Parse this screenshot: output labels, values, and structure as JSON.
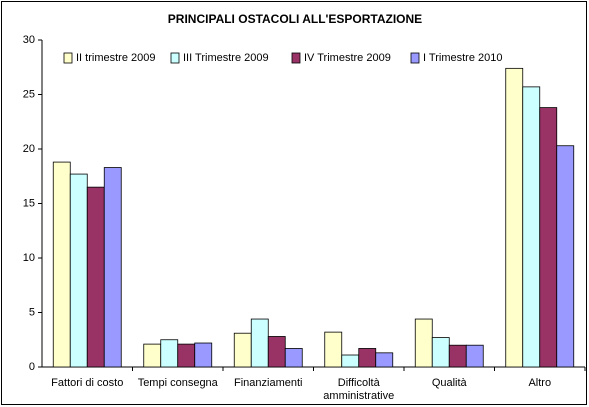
{
  "chart_data": {
    "type": "bar",
    "title": "PRINCIPALI OSTACOLI ALL'ESPORTAZIONE",
    "categories": [
      "Fattori di costo",
      "Tempi consegna",
      "Finanziamenti",
      "Difficoltà\namministrative",
      "Qualità",
      "Altro"
    ],
    "series": [
      {
        "name": "II trimestre 2009",
        "color": "#ffffcc",
        "values": [
          18.8,
          2.1,
          3.1,
          3.2,
          4.4,
          27.4
        ]
      },
      {
        "name": "III Trimestre 2009",
        "color": "#ccffff",
        "values": [
          17.7,
          2.5,
          4.4,
          1.1,
          2.7,
          25.7
        ]
      },
      {
        "name": "IV Trimestre 2009",
        "color": "#993366",
        "values": [
          16.5,
          2.1,
          2.8,
          1.7,
          2.0,
          23.8
        ]
      },
      {
        "name": "I Trimestre 2010",
        "color": "#9999ff",
        "values": [
          18.3,
          2.2,
          1.7,
          1.3,
          2.0,
          20.3
        ]
      }
    ],
    "ylim": [
      0,
      30
    ],
    "yticks": [
      0,
      5,
      10,
      15,
      20,
      25,
      30
    ],
    "legend": "top-left"
  }
}
